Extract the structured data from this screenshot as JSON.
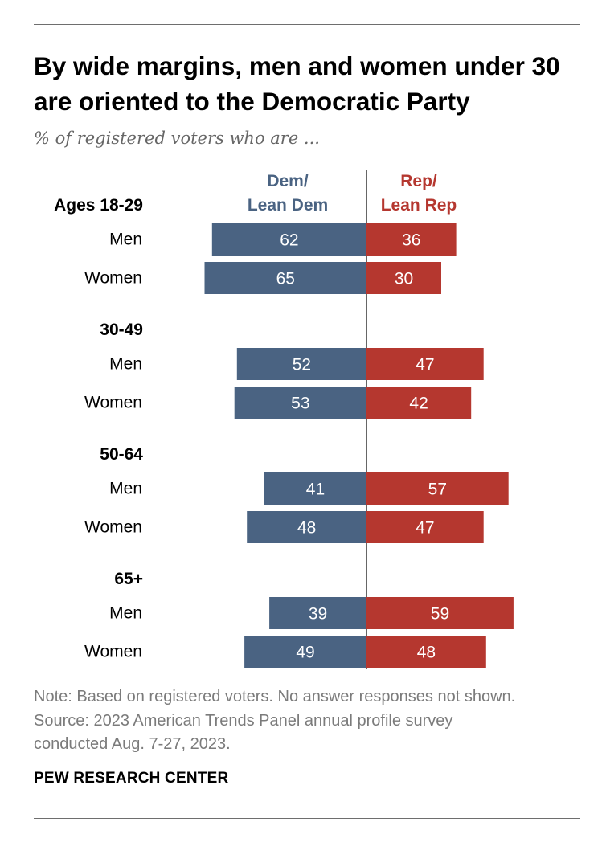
{
  "title": "By wide margins, men and women under 30 are oriented to the Democratic Party",
  "subtitle": "% of registered voters who are ...",
  "chart_data": {
    "type": "bar",
    "orientation": "horizontal-diverging",
    "title": "By wide margins, men and women under 30 are oriented to the Democratic Party",
    "subtitle": "% of registered voters who are ...",
    "categories": [
      {
        "group": "Ages 18-29",
        "label": "Men"
      },
      {
        "group": "Ages 18-29",
        "label": "Women"
      },
      {
        "group": "30-49",
        "label": "Men"
      },
      {
        "group": "30-49",
        "label": "Women"
      },
      {
        "group": "50-64",
        "label": "Men"
      },
      {
        "group": "50-64",
        "label": "Women"
      },
      {
        "group": "65+",
        "label": "Men"
      },
      {
        "group": "65+",
        "label": "Women"
      }
    ],
    "groups": [
      "Ages 18-29",
      "30-49",
      "50-64",
      "65+"
    ],
    "series": [
      {
        "name": "Dem/ Lean Dem",
        "header_lines": [
          "Dem/",
          "Lean Dem"
        ],
        "color": "#4a6382",
        "side": "left",
        "values": [
          62,
          65,
          52,
          53,
          41,
          48,
          39,
          49
        ]
      },
      {
        "name": "Rep/ Lean Rep",
        "header_lines": [
          "Rep/",
          "Lean Rep"
        ],
        "color": "#b5372f",
        "side": "right",
        "values": [
          36,
          30,
          47,
          42,
          57,
          47,
          59,
          48
        ]
      }
    ],
    "xlim": [
      0,
      70
    ],
    "grid": false,
    "value_labels": "inside-bars"
  },
  "notes": {
    "lines": [
      "Note: Based on registered voters. No answer responses not shown.",
      "Source: 2023 American Trends Panel annual profile survey",
      "conducted Aug. 7-27, 2023."
    ]
  },
  "brand": "PEW RESEARCH CENTER"
}
